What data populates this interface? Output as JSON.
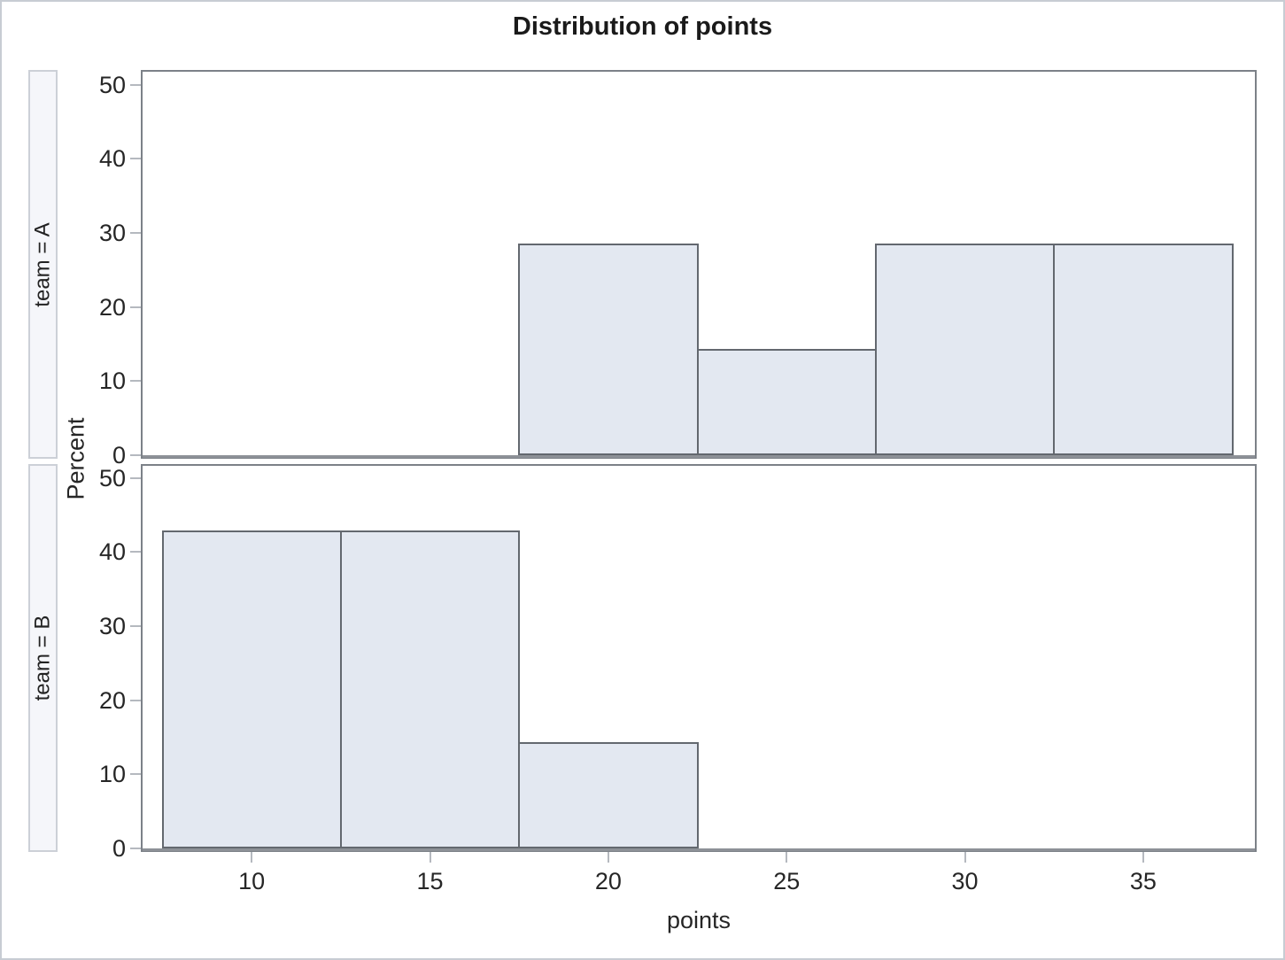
{
  "chart_data": {
    "type": "bar",
    "subtype": "paneled-histogram",
    "title": "Distribution of points",
    "xlabel": "points",
    "ylabel": "Percent",
    "x_ticks": [
      10,
      15,
      20,
      25,
      30,
      35
    ],
    "y_ticks": [
      0,
      10,
      20,
      30,
      40,
      50
    ],
    "xlim": [
      6.9,
      38.2
    ],
    "ylim": [
      0,
      52
    ],
    "bin_width": 5,
    "grid": false,
    "legend": "none",
    "panels": [
      {
        "label": "team = A",
        "bars": [
          {
            "x0": 17.5,
            "x1": 22.5,
            "percent": 28.57
          },
          {
            "x0": 22.5,
            "x1": 27.5,
            "percent": 14.29
          },
          {
            "x0": 27.5,
            "x1": 32.5,
            "percent": 28.57
          },
          {
            "x0": 32.5,
            "x1": 37.5,
            "percent": 28.57
          }
        ]
      },
      {
        "label": "team = B",
        "bars": [
          {
            "x0": 7.5,
            "x1": 12.5,
            "percent": 42.86
          },
          {
            "x0": 12.5,
            "x1": 17.5,
            "percent": 42.86
          },
          {
            "x0": 17.5,
            "x1": 22.5,
            "percent": 14.29
          }
        ]
      }
    ],
    "colors": {
      "bar_fill": "#e3e8f1",
      "bar_border": "#63686f",
      "panel_frame": "#7c8188",
      "baseline": "#8d9197",
      "tick_mark": "#b5b9bf",
      "strip_fill": "#f5f6fa",
      "strip_border": "#ccd0d7",
      "text": "#262626"
    }
  }
}
